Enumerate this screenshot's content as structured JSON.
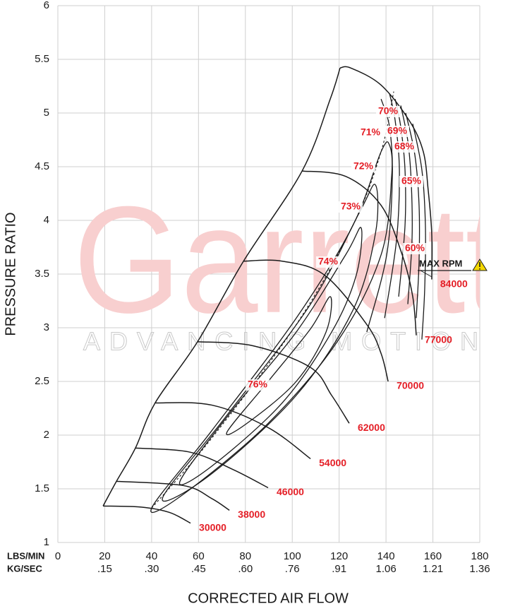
{
  "chart_data": {
    "type": "line",
    "x_label": "CORRECTED AIR FLOW",
    "y_label": "PRESSURE RATIO",
    "x_unit": "LBS/MIN",
    "x2_unit": "KG/SEC",
    "xlim": [
      0,
      180
    ],
    "ylim": [
      1,
      6
    ],
    "xticks": [
      0,
      20,
      40,
      60,
      80,
      100,
      120,
      140,
      160,
      180
    ],
    "x2ticks": [
      {
        "value": 20,
        "label": ".15"
      },
      {
        "value": 40,
        "label": ".30"
      },
      {
        "value": 60,
        "label": ".45"
      },
      {
        "value": 80,
        "label": ".60"
      },
      {
        "value": 100,
        "label": ".76"
      },
      {
        "value": 120,
        "label": ".91"
      },
      {
        "value": 140,
        "label": "1.06"
      },
      {
        "value": 160,
        "label": "1.21"
      },
      {
        "value": 180,
        "label": "1.36"
      }
    ],
    "yticks": [
      1,
      1.5,
      2,
      2.5,
      3,
      3.5,
      4,
      4.5,
      5,
      5.5,
      6
    ],
    "grid": true,
    "line_color": "#1a1a1a",
    "label_color": "#e41e26",
    "watermark": {
      "logo": "Garrett",
      "tagline": "ADVANCING MOTION"
    },
    "annotation": "MAX RPM",
    "surge_line": {
      "x": [
        19.3,
        25.0,
        33.1,
        41.5,
        59.6,
        79.2,
        104.2,
        116.2,
        120.4
      ],
      "y": [
        1.34,
        1.57,
        1.88,
        2.3,
        2.87,
        3.62,
        4.46,
        5.13,
        5.42
      ]
    },
    "max_efficiency_line": {
      "x": [
        40.0,
        65.6,
        101.7,
        125.8,
        137.9,
        143.3
      ],
      "y": [
        1.32,
        1.97,
        3.03,
        3.95,
        4.64,
        5.2
      ]
    },
    "speed_lines": [
      {
        "name": "30000",
        "x": [
          19.3,
          35.5,
          47.6,
          56.6
        ],
        "y": [
          1.34,
          1.33,
          1.28,
          1.18
        ]
      },
      {
        "name": "38000",
        "x": [
          25.0,
          53.6,
          65.6,
          73.2
        ],
        "y": [
          1.57,
          1.53,
          1.41,
          1.3
        ]
      },
      {
        "name": "46000",
        "x": [
          33.1,
          56.6,
          74.7,
          89.7
        ],
        "y": [
          1.88,
          1.84,
          1.68,
          1.51
        ]
      },
      {
        "name": "54000",
        "x": [
          41.5,
          65.6,
          89.7,
          107.8
        ],
        "y": [
          2.3,
          2.28,
          2.07,
          1.78
        ]
      },
      {
        "name": "62000",
        "x": [
          59.6,
          83.7,
          107.8,
          116.8,
          124.3
        ],
        "y": [
          2.87,
          2.83,
          2.63,
          2.37,
          2.11
        ]
      },
      {
        "name": "70000",
        "x": [
          79.2,
          95.7,
          113.8,
          131.8,
          137.9,
          140.9
        ],
        "y": [
          3.62,
          3.62,
          3.49,
          3.03,
          2.76,
          2.5
        ]
      },
      {
        "name": "77000",
        "x": [
          104.2,
          122.8,
          137.9,
          146.9,
          151.4,
          152.9
        ],
        "y": [
          4.46,
          4.41,
          4.14,
          3.68,
          3.29,
          2.93
        ]
      },
      {
        "name": "84000",
        "x": [
          120.4,
          124.9,
          137.9,
          149.9,
          155.9,
          158.0,
          159.5,
          159.5
        ],
        "y": [
          5.42,
          5.42,
          5.26,
          4.93,
          4.64,
          4.28,
          3.88,
          3.45
        ]
      }
    ],
    "efficiency_islands": [
      {
        "name": "76%",
        "closed": true,
        "x": [
          72.2,
          89.7,
          107.8,
          116.2,
          114.4,
          101.7,
          80.7
        ],
        "y": [
          2.03,
          2.5,
          2.99,
          3.29,
          2.96,
          2.5,
          2.11
        ]
      },
      {
        "name": "74%",
        "closed": true,
        "x": [
          52.1,
          74.7,
          101.7,
          122.8,
          129.4,
          127.3,
          116.8,
          95.7,
          65.6
        ],
        "y": [
          1.57,
          2.24,
          2.96,
          3.68,
          3.93,
          3.49,
          2.96,
          2.3,
          1.71
        ]
      },
      {
        "name": "73%",
        "closed": true,
        "x": [
          44.6,
          71.6,
          107.8,
          128.8,
          135.5,
          135.5,
          125.8,
          101.7,
          65.6
        ],
        "y": [
          1.41,
          2.17,
          3.22,
          4.08,
          4.33,
          3.88,
          3.16,
          2.37,
          1.64
        ]
      },
      {
        "name": "72%",
        "closed": true,
        "x": [
          40.0,
          65.6,
          101.7,
          125.8,
          137.9,
          141.5,
          142.4,
          137.9,
          119.8,
          89.7,
          53.6
        ],
        "y": [
          1.32,
          2.04,
          3.09,
          3.95,
          4.64,
          4.7,
          4.41,
          3.68,
          2.89,
          2.11,
          1.45
        ]
      },
      {
        "name": "71%",
        "closed": false,
        "x": [
          137.9,
          141.5,
          142.7,
          140.3,
          131.8
        ],
        "y": [
          5.13,
          4.87,
          4.41,
          3.68,
          2.96
        ]
      },
      {
        "name": "70%",
        "closed": false,
        "x": [
          141.5,
          143.9,
          145.7,
          144.5,
          139.4
        ],
        "y": [
          5.18,
          4.93,
          4.47,
          3.82,
          3.09
        ]
      },
      {
        "name": "69%",
        "closed": false,
        "x": [
          143.9,
          146.3,
          148.1,
          148.1,
          145.4
        ],
        "y": [
          5.13,
          4.87,
          4.47,
          3.95,
          3.29
        ]
      },
      {
        "name": "68%",
        "closed": false,
        "x": [
          146.3,
          149.3,
          150.8,
          151.1,
          149.3
        ],
        "y": [
          5.07,
          4.74,
          4.34,
          3.82,
          3.22
        ]
      },
      {
        "name": "65%",
        "closed": false,
        "x": [
          148.4,
          152.3,
          154.1,
          154.1,
          152.9
        ],
        "y": [
          5.0,
          4.61,
          4.14,
          3.62,
          3.09
        ]
      },
      {
        "name": "60%",
        "closed": false,
        "x": [
          151.4,
          155.3,
          156.8,
          156.5,
          155.3
        ],
        "y": [
          4.9,
          4.47,
          3.95,
          3.36,
          2.89
        ]
      }
    ]
  }
}
